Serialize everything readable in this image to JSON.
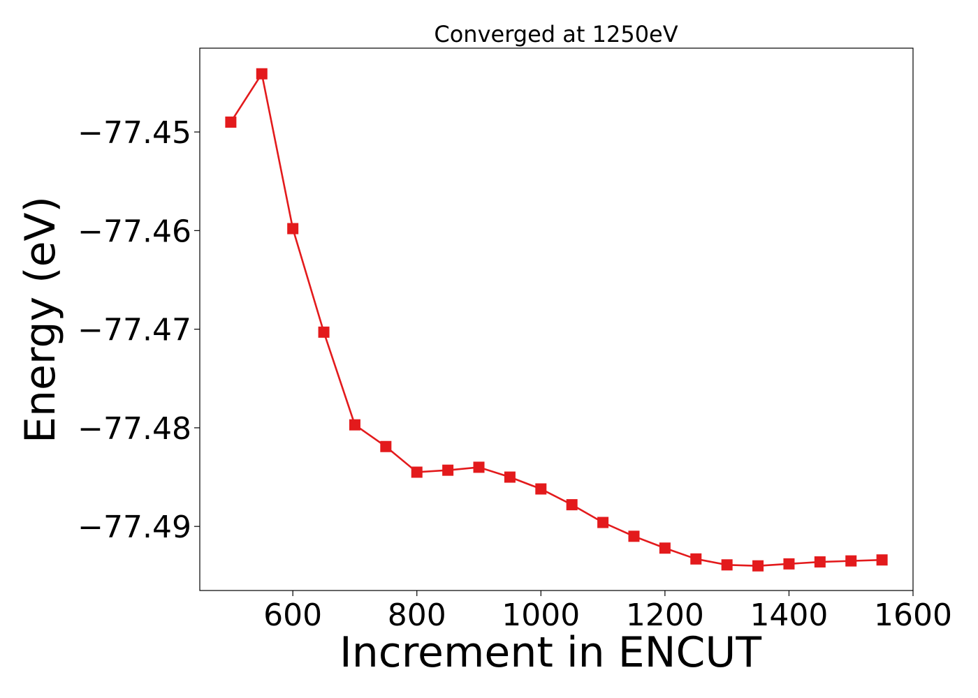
{
  "chart_data": {
    "type": "line",
    "title": "Converged at 1250eV",
    "xlabel": "Increment in ENCUT",
    "ylabel": "Energy (eV)",
    "xlim": [
      450,
      1600
    ],
    "ylim": [
      -77.4965,
      -77.4415
    ],
    "xticks": [
      600,
      800,
      1000,
      1200,
      1400,
      1600
    ],
    "yticks": [
      -77.45,
      -77.46,
      -77.47,
      -77.48,
      -77.49
    ],
    "ytick_labels": [
      "−77.45",
      "−77.46",
      "−77.47",
      "−77.48",
      "−77.49"
    ],
    "grid": false,
    "marker": "square",
    "color": "#e31a1c",
    "series": [
      {
        "x": [
          500,
          550,
          600,
          650,
          700,
          750,
          800,
          850,
          900,
          950,
          1000,
          1050,
          1100,
          1150,
          1200,
          1250,
          1300,
          1350,
          1400,
          1450,
          1500,
          1550
        ],
        "values": [
          -77.449,
          -77.4441,
          -77.4598,
          -77.4703,
          -77.4797,
          -77.4819,
          -77.4845,
          -77.4843,
          -77.484,
          -77.485,
          -77.4862,
          -77.4878,
          -77.4896,
          -77.491,
          -77.4922,
          -77.4933,
          -77.4939,
          -77.494,
          -77.4938,
          -77.4936,
          -77.4935,
          -77.4934
        ]
      }
    ]
  }
}
